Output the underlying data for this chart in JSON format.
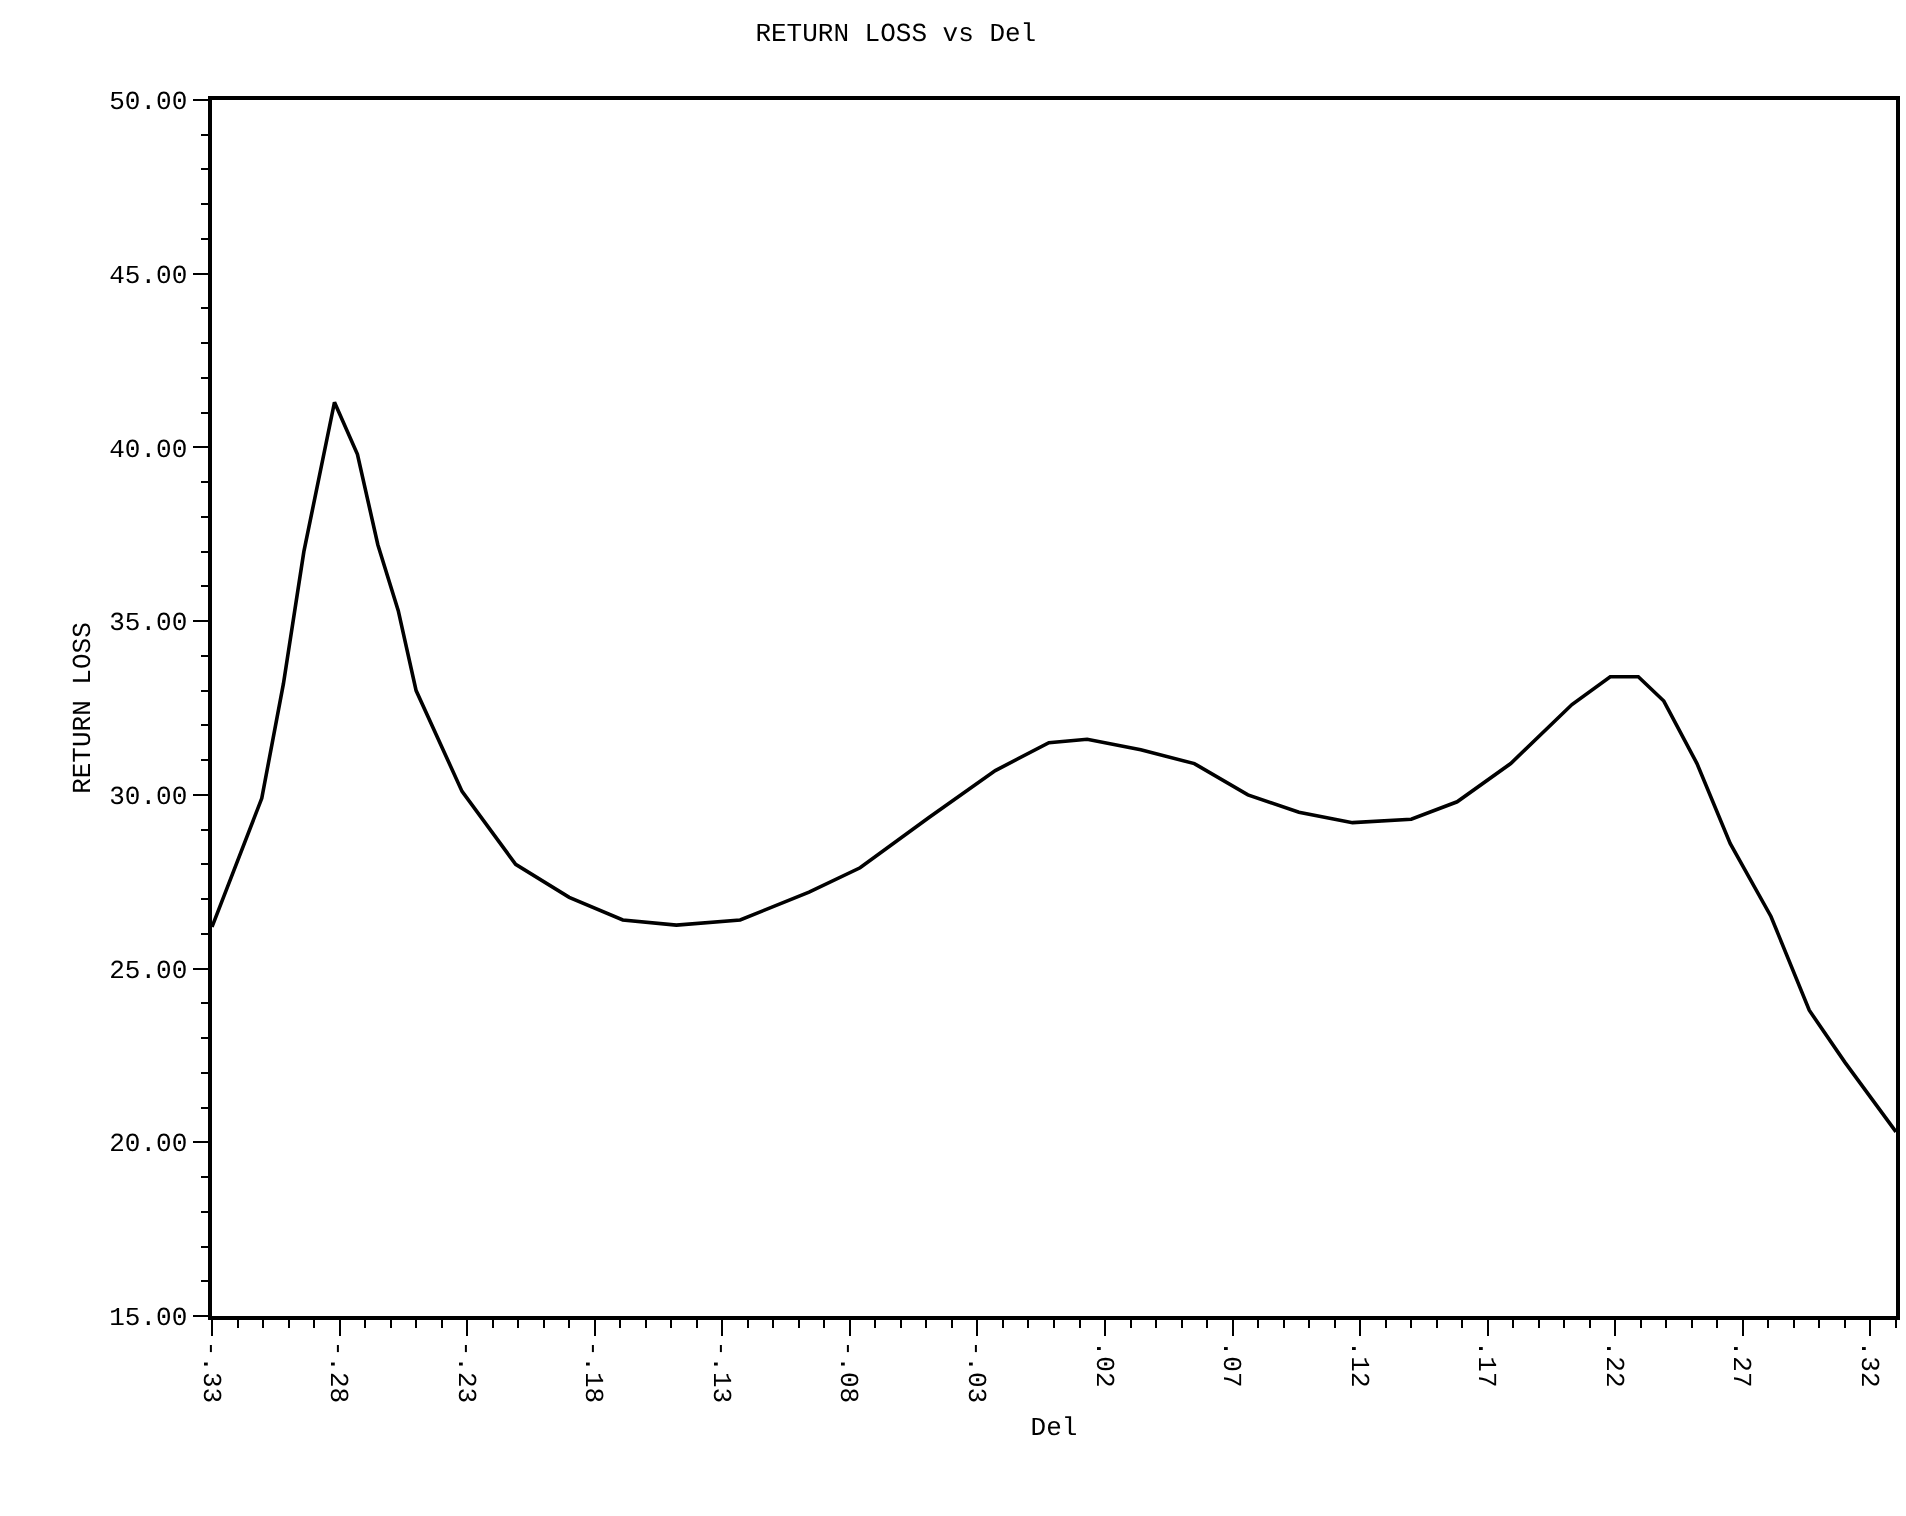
{
  "chart_data": {
    "type": "line",
    "title": "RETURN LOSS vs Del",
    "xlabel": "Del",
    "ylabel": "RETURN LOSS",
    "series": [
      {
        "color": "#000000",
        "x": [
          -0.33,
          -0.3105,
          -0.302,
          -0.294,
          -0.282,
          -0.273,
          -0.265,
          -0.257,
          -0.25,
          -0.232,
          -0.211,
          -0.19,
          -0.169,
          -0.148,
          -0.123,
          -0.096,
          -0.076,
          -0.049,
          -0.023,
          -0.002,
          0.013,
          0.034,
          0.055,
          0.076,
          0.096,
          0.117,
          0.14,
          0.158,
          0.179,
          0.203,
          0.218,
          0.229,
          0.239,
          0.252,
          0.265,
          0.281,
          0.296,
          0.31,
          0.33
        ],
        "values": [
          26.2,
          29.9,
          33.2,
          37.0,
          41.3,
          39.8,
          37.2,
          35.3,
          33.0,
          30.1,
          28.0,
          27.05,
          26.4,
          26.25,
          26.4,
          27.2,
          27.9,
          29.35,
          30.7,
          31.5,
          31.6,
          31.3,
          30.9,
          30.0,
          29.5,
          29.2,
          29.3,
          29.8,
          30.9,
          32.6,
          33.4,
          33.4,
          32.7,
          30.9,
          28.6,
          26.5,
          23.8,
          22.3,
          20.3
        ]
      }
    ],
    "xlim": [
      -0.33,
      0.33
    ],
    "xticks": [
      {
        "value": -0.33,
        "label": "-.33"
      },
      {
        "value": -0.28,
        "label": "-.28"
      },
      {
        "value": -0.23,
        "label": "-.23"
      },
      {
        "value": -0.18,
        "label": "-.18"
      },
      {
        "value": -0.13,
        "label": "-.13"
      },
      {
        "value": -0.08,
        "label": "-.08"
      },
      {
        "value": -0.03,
        "label": "-.03"
      },
      {
        "value": 0.02,
        "label": ".02"
      },
      {
        "value": 0.07,
        "label": ".07"
      },
      {
        "value": 0.12,
        "label": ".12"
      },
      {
        "value": 0.17,
        "label": ".17"
      },
      {
        "value": 0.22,
        "label": ".22"
      },
      {
        "value": 0.27,
        "label": ".27"
      },
      {
        "value": 0.32,
        "label": ".32"
      }
    ],
    "ylim": [
      15,
      50
    ],
    "yticks": [
      {
        "value": 15,
        "label": "15.00"
      },
      {
        "value": 20,
        "label": "20.00"
      },
      {
        "value": 25,
        "label": "25.00"
      },
      {
        "value": 30,
        "label": "30.00"
      },
      {
        "value": 35,
        "label": "35.00"
      },
      {
        "value": 40,
        "label": "40.00"
      },
      {
        "value": 45,
        "label": "45.00"
      },
      {
        "value": 50,
        "label": "50.00"
      }
    ],
    "grid": false,
    "legend": false,
    "marker": "none",
    "line_style": "solid"
  }
}
